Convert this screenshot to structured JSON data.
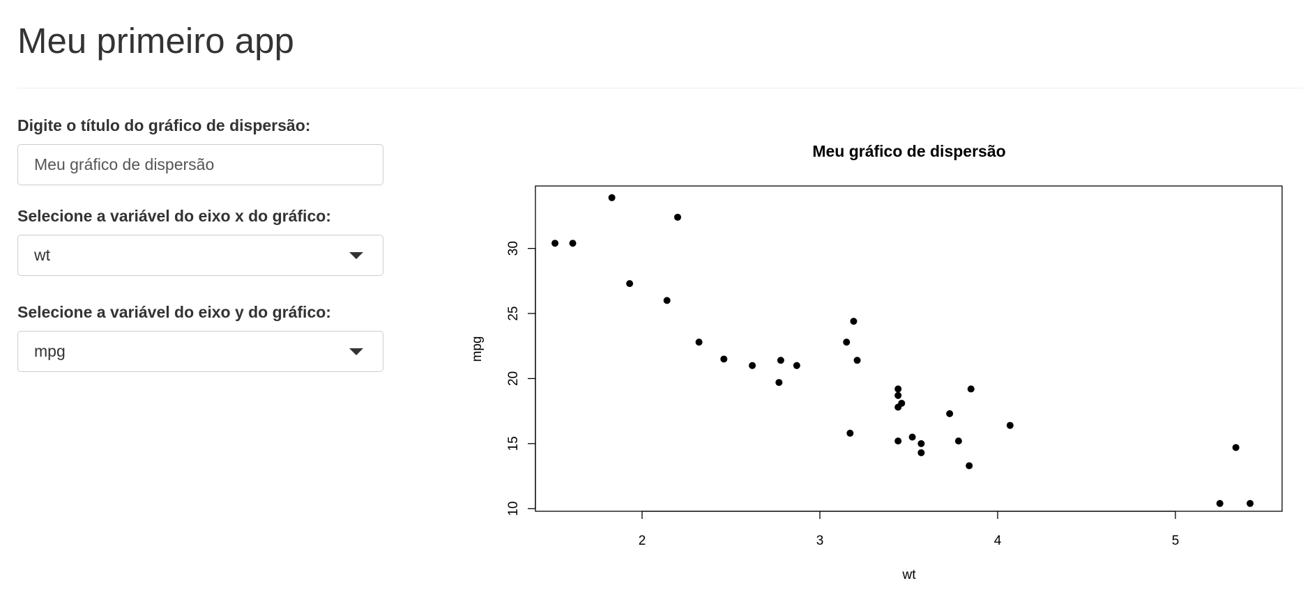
{
  "app": {
    "title": "Meu primeiro app"
  },
  "inputs": {
    "title_label": "Digite o título do gráfico de dispersão:",
    "title_value": "Meu gráfico de dispersão",
    "x_label": "Selecione a variável do eixo x do gráfico:",
    "x_value": "wt",
    "y_label": "Selecione a variável do eixo y do gráfico:",
    "y_value": "mpg"
  },
  "chart_data": {
    "type": "scatter",
    "title": "Meu gráfico de dispersão",
    "xlabel": "wt",
    "ylabel": "mpg",
    "xlim": [
      1.4,
      5.6
    ],
    "ylim": [
      9.8,
      34.8
    ],
    "xticks": [
      2,
      3,
      4,
      5
    ],
    "yticks": [
      10,
      15,
      20,
      25,
      30
    ],
    "grid": false,
    "color": "#000000",
    "points": [
      [
        1.51,
        30.4
      ],
      [
        1.61,
        30.4
      ],
      [
        1.83,
        33.9
      ],
      [
        1.93,
        27.3
      ],
      [
        2.14,
        26.0
      ],
      [
        2.2,
        32.4
      ],
      [
        2.32,
        22.8
      ],
      [
        2.46,
        21.5
      ],
      [
        2.62,
        21.0
      ],
      [
        2.77,
        19.7
      ],
      [
        2.78,
        21.4
      ],
      [
        2.87,
        21.0
      ],
      [
        3.15,
        22.8
      ],
      [
        3.17,
        15.8
      ],
      [
        3.19,
        24.4
      ],
      [
        3.21,
        21.4
      ],
      [
        3.44,
        18.7
      ],
      [
        3.44,
        19.2
      ],
      [
        3.44,
        17.8
      ],
      [
        3.44,
        15.2
      ],
      [
        3.46,
        18.1
      ],
      [
        3.52,
        15.5
      ],
      [
        3.57,
        15.0
      ],
      [
        3.57,
        14.3
      ],
      [
        3.73,
        17.3
      ],
      [
        3.78,
        15.2
      ],
      [
        3.84,
        13.3
      ],
      [
        3.85,
        19.2
      ],
      [
        4.07,
        16.4
      ],
      [
        5.25,
        10.4
      ],
      [
        5.34,
        14.7
      ],
      [
        5.42,
        10.4
      ]
    ]
  }
}
